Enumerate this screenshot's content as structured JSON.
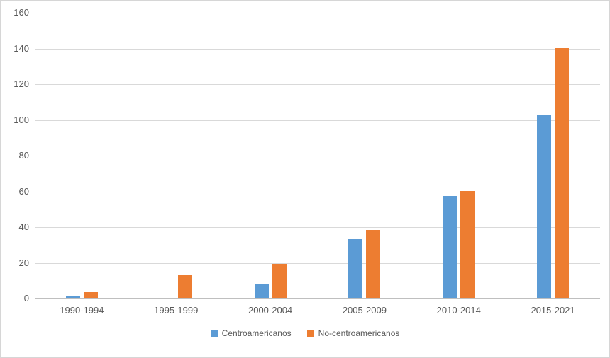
{
  "chart_data": {
    "type": "bar",
    "title": "",
    "xlabel": "",
    "ylabel": "",
    "categories": [
      "1990-1994",
      "1995-1999",
      "2000-2004",
      "2005-2009",
      "2010-2014",
      "2015-2021"
    ],
    "series": [
      {
        "name": "Centroamericanos",
        "color": "#5B9BD5",
        "values": [
          1,
          0,
          8,
          33,
          57,
          102
        ]
      },
      {
        "name": "No-centroamericanos",
        "color": "#ED7D31",
        "values": [
          3,
          13,
          19,
          38,
          60,
          140
        ]
      }
    ],
    "ylim": [
      0,
      160
    ],
    "ytick_step": 20,
    "yticks": [
      0,
      20,
      40,
      60,
      80,
      100,
      120,
      140,
      160
    ],
    "grid": true,
    "legend_position": "bottom",
    "background": "#ffffff",
    "gridline_color": "#d9d9d9",
    "axis_text_color": "#595959"
  }
}
